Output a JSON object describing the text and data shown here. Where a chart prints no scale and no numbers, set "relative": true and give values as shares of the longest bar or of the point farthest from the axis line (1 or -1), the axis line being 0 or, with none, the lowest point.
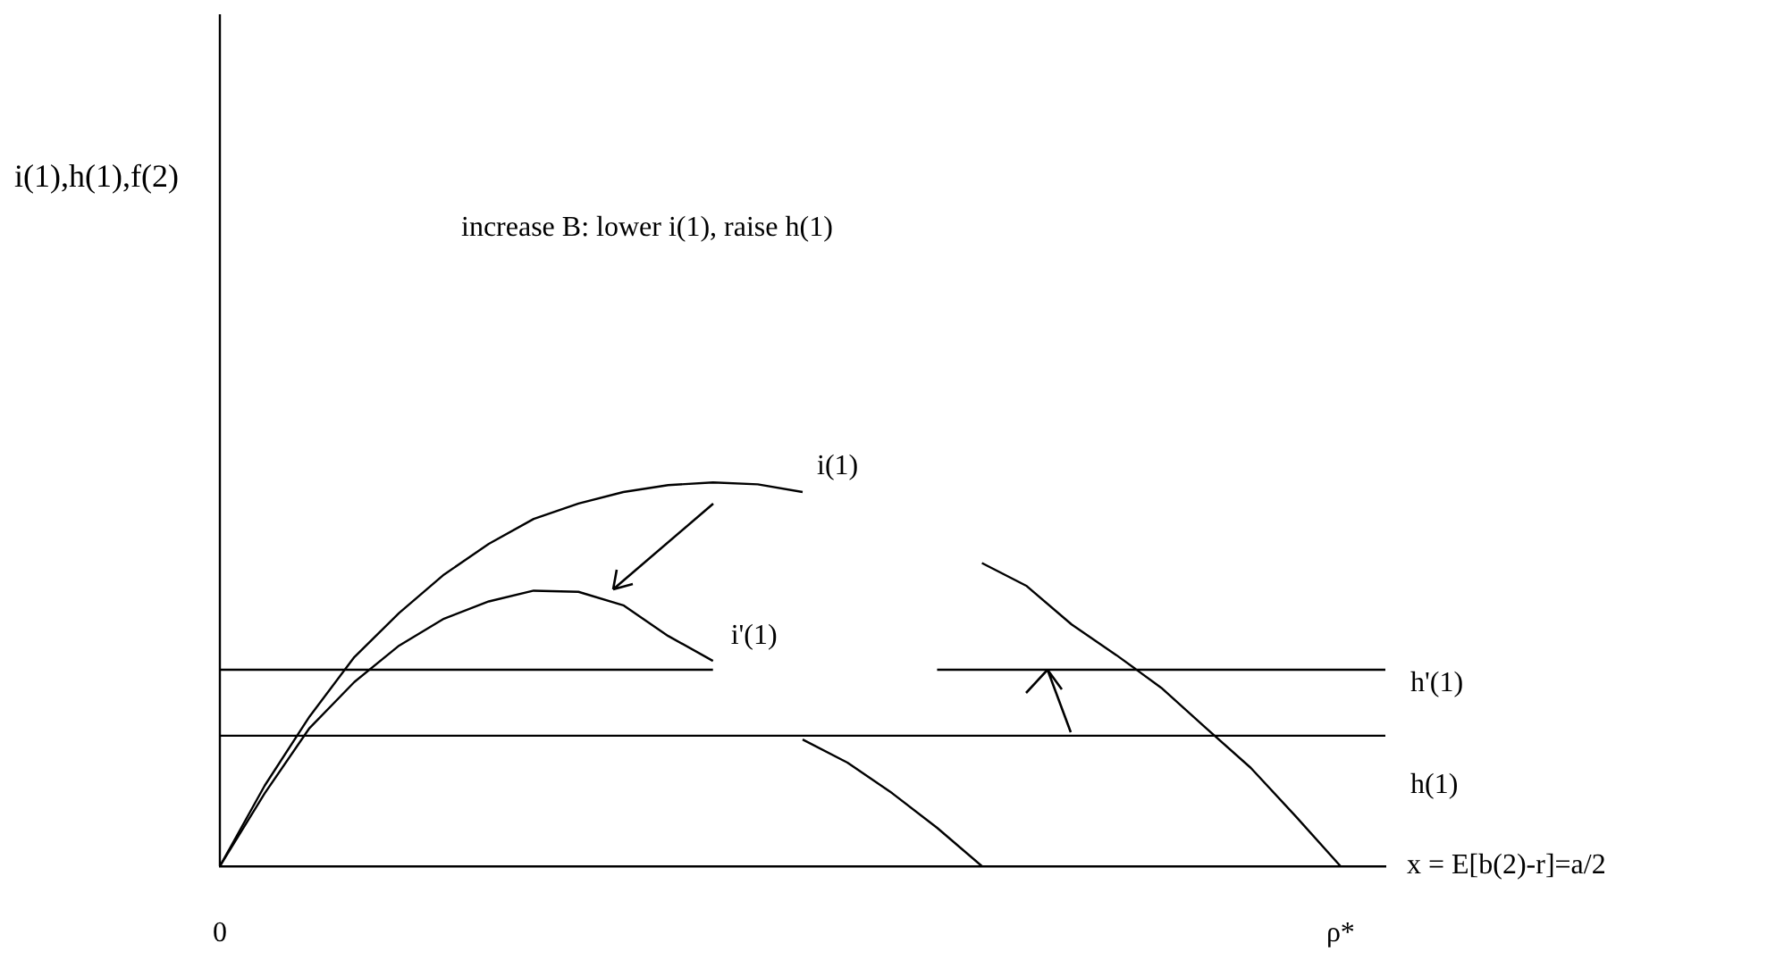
{
  "chart_data": {
    "type": "line",
    "relative": true,
    "xlabel": "x = E[b(2)-r]=a/2",
    "annotations": [
      "i(1),h(1),f(2)",
      "increase B: lower i(1), raise h(1)"
    ],
    "categories": [
      "0",
      null,
      null,
      null,
      null,
      null,
      null,
      null,
      null,
      null,
      null,
      null,
      null,
      null,
      null,
      null,
      null,
      null,
      null,
      null,
      null,
      null,
      null,
      null,
      null,
      "ρ*",
      null
    ],
    "legend": false,
    "grid": false,
    "marker": "none",
    "line_style": "solid",
    "series": [
      {
        "name": "i(1)",
        "color": "#000000",
        "values": [
          0,
          0.21,
          0.39,
          0.545,
          0.66,
          0.76,
          0.84,
          0.905,
          0.945,
          0.975,
          0.993,
          1,
          0.995,
          0.975,
          null,
          null,
          null,
          0.79,
          0.73,
          0.63,
          0.55,
          0.465,
          0.36,
          0.256,
          0.13,
          0,
          null
        ]
      },
      {
        "name": "i'(1)",
        "color": "#000000",
        "values": [
          0,
          0.19,
          0.36,
          0.48,
          0.575,
          0.645,
          0.69,
          0.718,
          0.715,
          0.68,
          0.6,
          0.535,
          null,
          0.33,
          0.27,
          0.19,
          0.1,
          0,
          null,
          null,
          null,
          null,
          null,
          null,
          null,
          null,
          null
        ]
      },
      {
        "name": "h'(1)",
        "color": "#000000",
        "values": [
          0.512,
          0.512,
          0.512,
          0.512,
          0.512,
          0.512,
          0.512,
          0.512,
          0.512,
          0.512,
          0.512,
          0.512,
          null,
          null,
          null,
          null,
          0.512,
          0.512,
          0.512,
          0.512,
          0.512,
          0.512,
          0.512,
          0.512,
          0.512,
          0.512,
          0.512
        ]
      },
      {
        "name": "h(1)",
        "color": "#000000",
        "values": [
          0.34,
          0.34,
          0.34,
          0.34,
          0.34,
          0.34,
          0.34,
          0.34,
          0.34,
          0.34,
          0.34,
          0.34,
          0.34,
          0.34,
          0.34,
          0.34,
          0.34,
          0.34,
          0.34,
          0.34,
          0.34,
          0.34,
          0.34,
          0.34,
          0.34,
          0.34,
          0.34
        ]
      }
    ]
  }
}
